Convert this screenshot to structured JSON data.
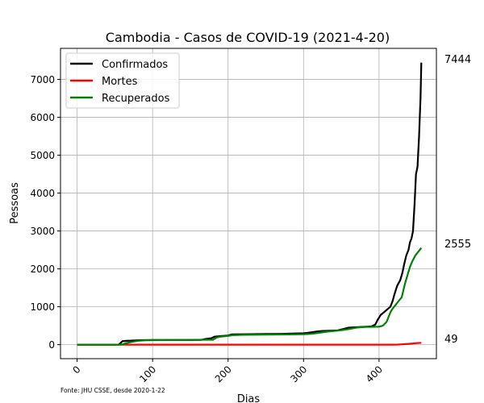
{
  "chart_data": {
    "type": "line",
    "title": "Cambodia - Casos de COVID-19 (2021-4-20)",
    "xlabel": "Dias",
    "ylabel": "Pessoas",
    "source_note": "Fonte: JHU CSSE, desde 2020-1-22",
    "xlim": [
      -22,
      476
    ],
    "ylim": [
      -370,
      7820
    ],
    "xticks": [
      0,
      100,
      200,
      300,
      400
    ],
    "xtick_labels": [
      "0",
      "100",
      "200",
      "300",
      "400"
    ],
    "yticks": [
      0,
      1000,
      2000,
      3000,
      4000,
      5000,
      6000,
      7000
    ],
    "ytick_labels": [
      "0",
      "1000",
      "2000",
      "3000",
      "4000",
      "5000",
      "6000",
      "7000"
    ],
    "grid": true,
    "legend_position": "top-left",
    "end_labels": [
      "7444",
      "2555",
      "49"
    ],
    "series": [
      {
        "name": "Confirmados",
        "color": "#000000",
        "points": [
          [
            0,
            0
          ],
          [
            50,
            0
          ],
          [
            55,
            2
          ],
          [
            58,
            50
          ],
          [
            60,
            90
          ],
          [
            65,
            100
          ],
          [
            70,
            105
          ],
          [
            80,
            115
          ],
          [
            90,
            120
          ],
          [
            100,
            122
          ],
          [
            120,
            123
          ],
          [
            150,
            124
          ],
          [
            165,
            128
          ],
          [
            170,
            150
          ],
          [
            178,
            170
          ],
          [
            182,
            210
          ],
          [
            190,
            225
          ],
          [
            200,
            240
          ],
          [
            205,
            270
          ],
          [
            220,
            275
          ],
          [
            250,
            280
          ],
          [
            270,
            285
          ],
          [
            290,
            295
          ],
          [
            300,
            300
          ],
          [
            305,
            310
          ],
          [
            312,
            330
          ],
          [
            318,
            350
          ],
          [
            325,
            362
          ],
          [
            335,
            368
          ],
          [
            345,
            375
          ],
          [
            350,
            400
          ],
          [
            360,
            450
          ],
          [
            370,
            460
          ],
          [
            380,
            470
          ],
          [
            390,
            480
          ],
          [
            395,
            530
          ],
          [
            398,
            650
          ],
          [
            402,
            780
          ],
          [
            408,
            880
          ],
          [
            415,
            1000
          ],
          [
            418,
            1150
          ],
          [
            420,
            1300
          ],
          [
            424,
            1550
          ],
          [
            428,
            1700
          ],
          [
            431,
            1900
          ],
          [
            433,
            2100
          ],
          [
            436,
            2350
          ],
          [
            439,
            2500
          ],
          [
            441,
            2700
          ],
          [
            443,
            2800
          ],
          [
            445,
            3000
          ],
          [
            447,
            3700
          ],
          [
            449,
            4500
          ],
          [
            451,
            4700
          ],
          [
            453,
            5500
          ],
          [
            455,
            6500
          ],
          [
            456,
            7444
          ]
        ]
      },
      {
        "name": "Mortes",
        "color": "#ff0000",
        "points": [
          [
            0,
            0
          ],
          [
            420,
            0
          ],
          [
            425,
            2
          ],
          [
            430,
            8
          ],
          [
            435,
            15
          ],
          [
            440,
            22
          ],
          [
            445,
            30
          ],
          [
            450,
            40
          ],
          [
            456,
            49
          ]
        ]
      },
      {
        "name": "Recuperados",
        "color": "#008000",
        "points": [
          [
            0,
            0
          ],
          [
            55,
            0
          ],
          [
            60,
            5
          ],
          [
            65,
            40
          ],
          [
            72,
            70
          ],
          [
            80,
            100
          ],
          [
            90,
            115
          ],
          [
            100,
            120
          ],
          [
            150,
            125
          ],
          [
            180,
            130
          ],
          [
            185,
            190
          ],
          [
            190,
            210
          ],
          [
            200,
            230
          ],
          [
            205,
            250
          ],
          [
            220,
            260
          ],
          [
            250,
            265
          ],
          [
            280,
            270
          ],
          [
            300,
            275
          ],
          [
            310,
            285
          ],
          [
            320,
            310
          ],
          [
            330,
            340
          ],
          [
            340,
            360
          ],
          [
            350,
            380
          ],
          [
            360,
            410
          ],
          [
            370,
            450
          ],
          [
            380,
            465
          ],
          [
            390,
            470
          ],
          [
            400,
            475
          ],
          [
            405,
            500
          ],
          [
            410,
            600
          ],
          [
            412,
            700
          ],
          [
            415,
            850
          ],
          [
            418,
            950
          ],
          [
            422,
            1050
          ],
          [
            426,
            1150
          ],
          [
            430,
            1250
          ],
          [
            433,
            1500
          ],
          [
            435,
            1650
          ],
          [
            438,
            1850
          ],
          [
            441,
            2050
          ],
          [
            444,
            2200
          ],
          [
            448,
            2350
          ],
          [
            452,
            2450
          ],
          [
            456,
            2555
          ]
        ]
      }
    ]
  }
}
